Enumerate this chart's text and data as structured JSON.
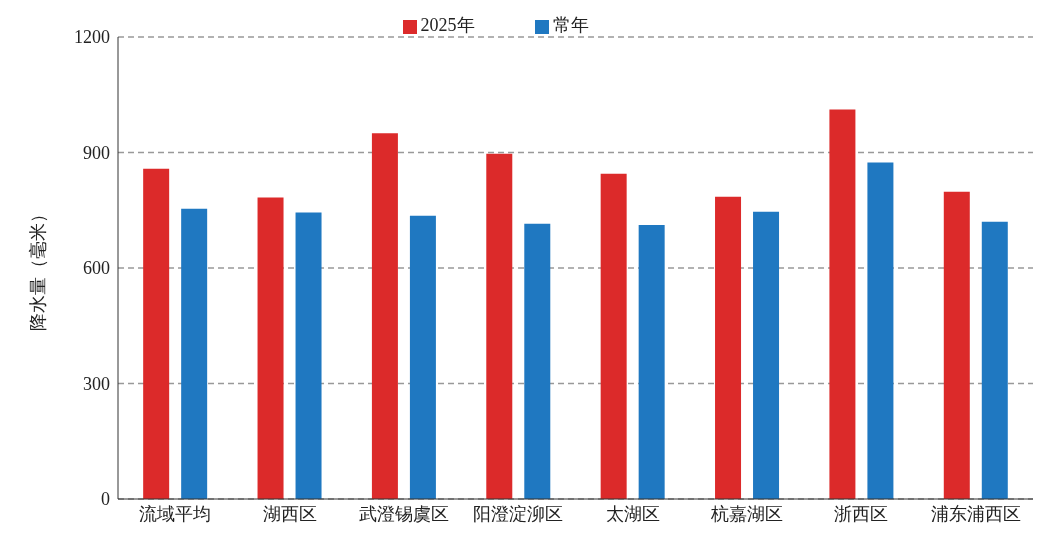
{
  "chart_data": {
    "type": "bar",
    "ylabel": "降水量（毫米）",
    "categories": [
      "流域平均",
      "湖西区",
      "武澄锡虞区",
      "阳澄淀泖区",
      "太湖区",
      "杭嘉湖区",
      "浙西区",
      "浦东浦西区"
    ],
    "series": [
      {
        "name": "2025年",
        "color": "#dc2a2a",
        "values": [
          858,
          783,
          950,
          897,
          845,
          785,
          1012,
          798
        ]
      },
      {
        "name": "常年",
        "color": "#1f78c1",
        "values": [
          754,
          744,
          736,
          715,
          712,
          746,
          874,
          720
        ]
      }
    ],
    "ylim": [
      0,
      1200
    ],
    "yticks": [
      0,
      300,
      600,
      900,
      1200
    ],
    "grid": "y",
    "legend": "top"
  }
}
